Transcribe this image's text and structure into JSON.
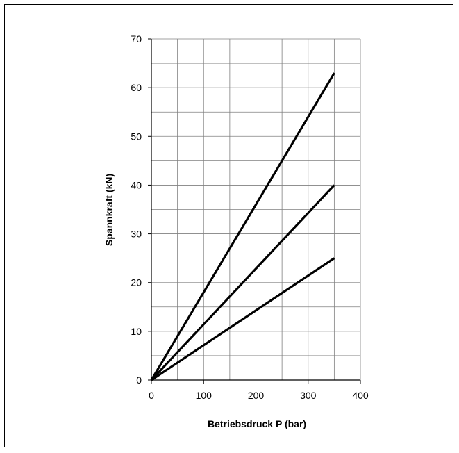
{
  "chart_data": {
    "type": "line",
    "title": "",
    "xlabel": "Betriebsdruck P (bar)",
    "ylabel": "Spannkraft (kN)",
    "xlim": [
      0,
      400
    ],
    "ylim": [
      0,
      70
    ],
    "x_ticks": [
      0,
      100,
      200,
      300,
      400
    ],
    "y_ticks": [
      0,
      10,
      20,
      30,
      40,
      50,
      60,
      70
    ],
    "x_minor_step": 50,
    "y_minor_step": 5,
    "grid": true,
    "legend": "none",
    "line_color": "#000000",
    "grid_color": "#808080",
    "series": [
      {
        "x": [
          0,
          350
        ],
        "y": [
          0,
          63
        ]
      },
      {
        "x": [
          0,
          350
        ],
        "y": [
          0,
          40
        ]
      },
      {
        "x": [
          0,
          350
        ],
        "y": [
          0,
          25
        ]
      }
    ]
  }
}
